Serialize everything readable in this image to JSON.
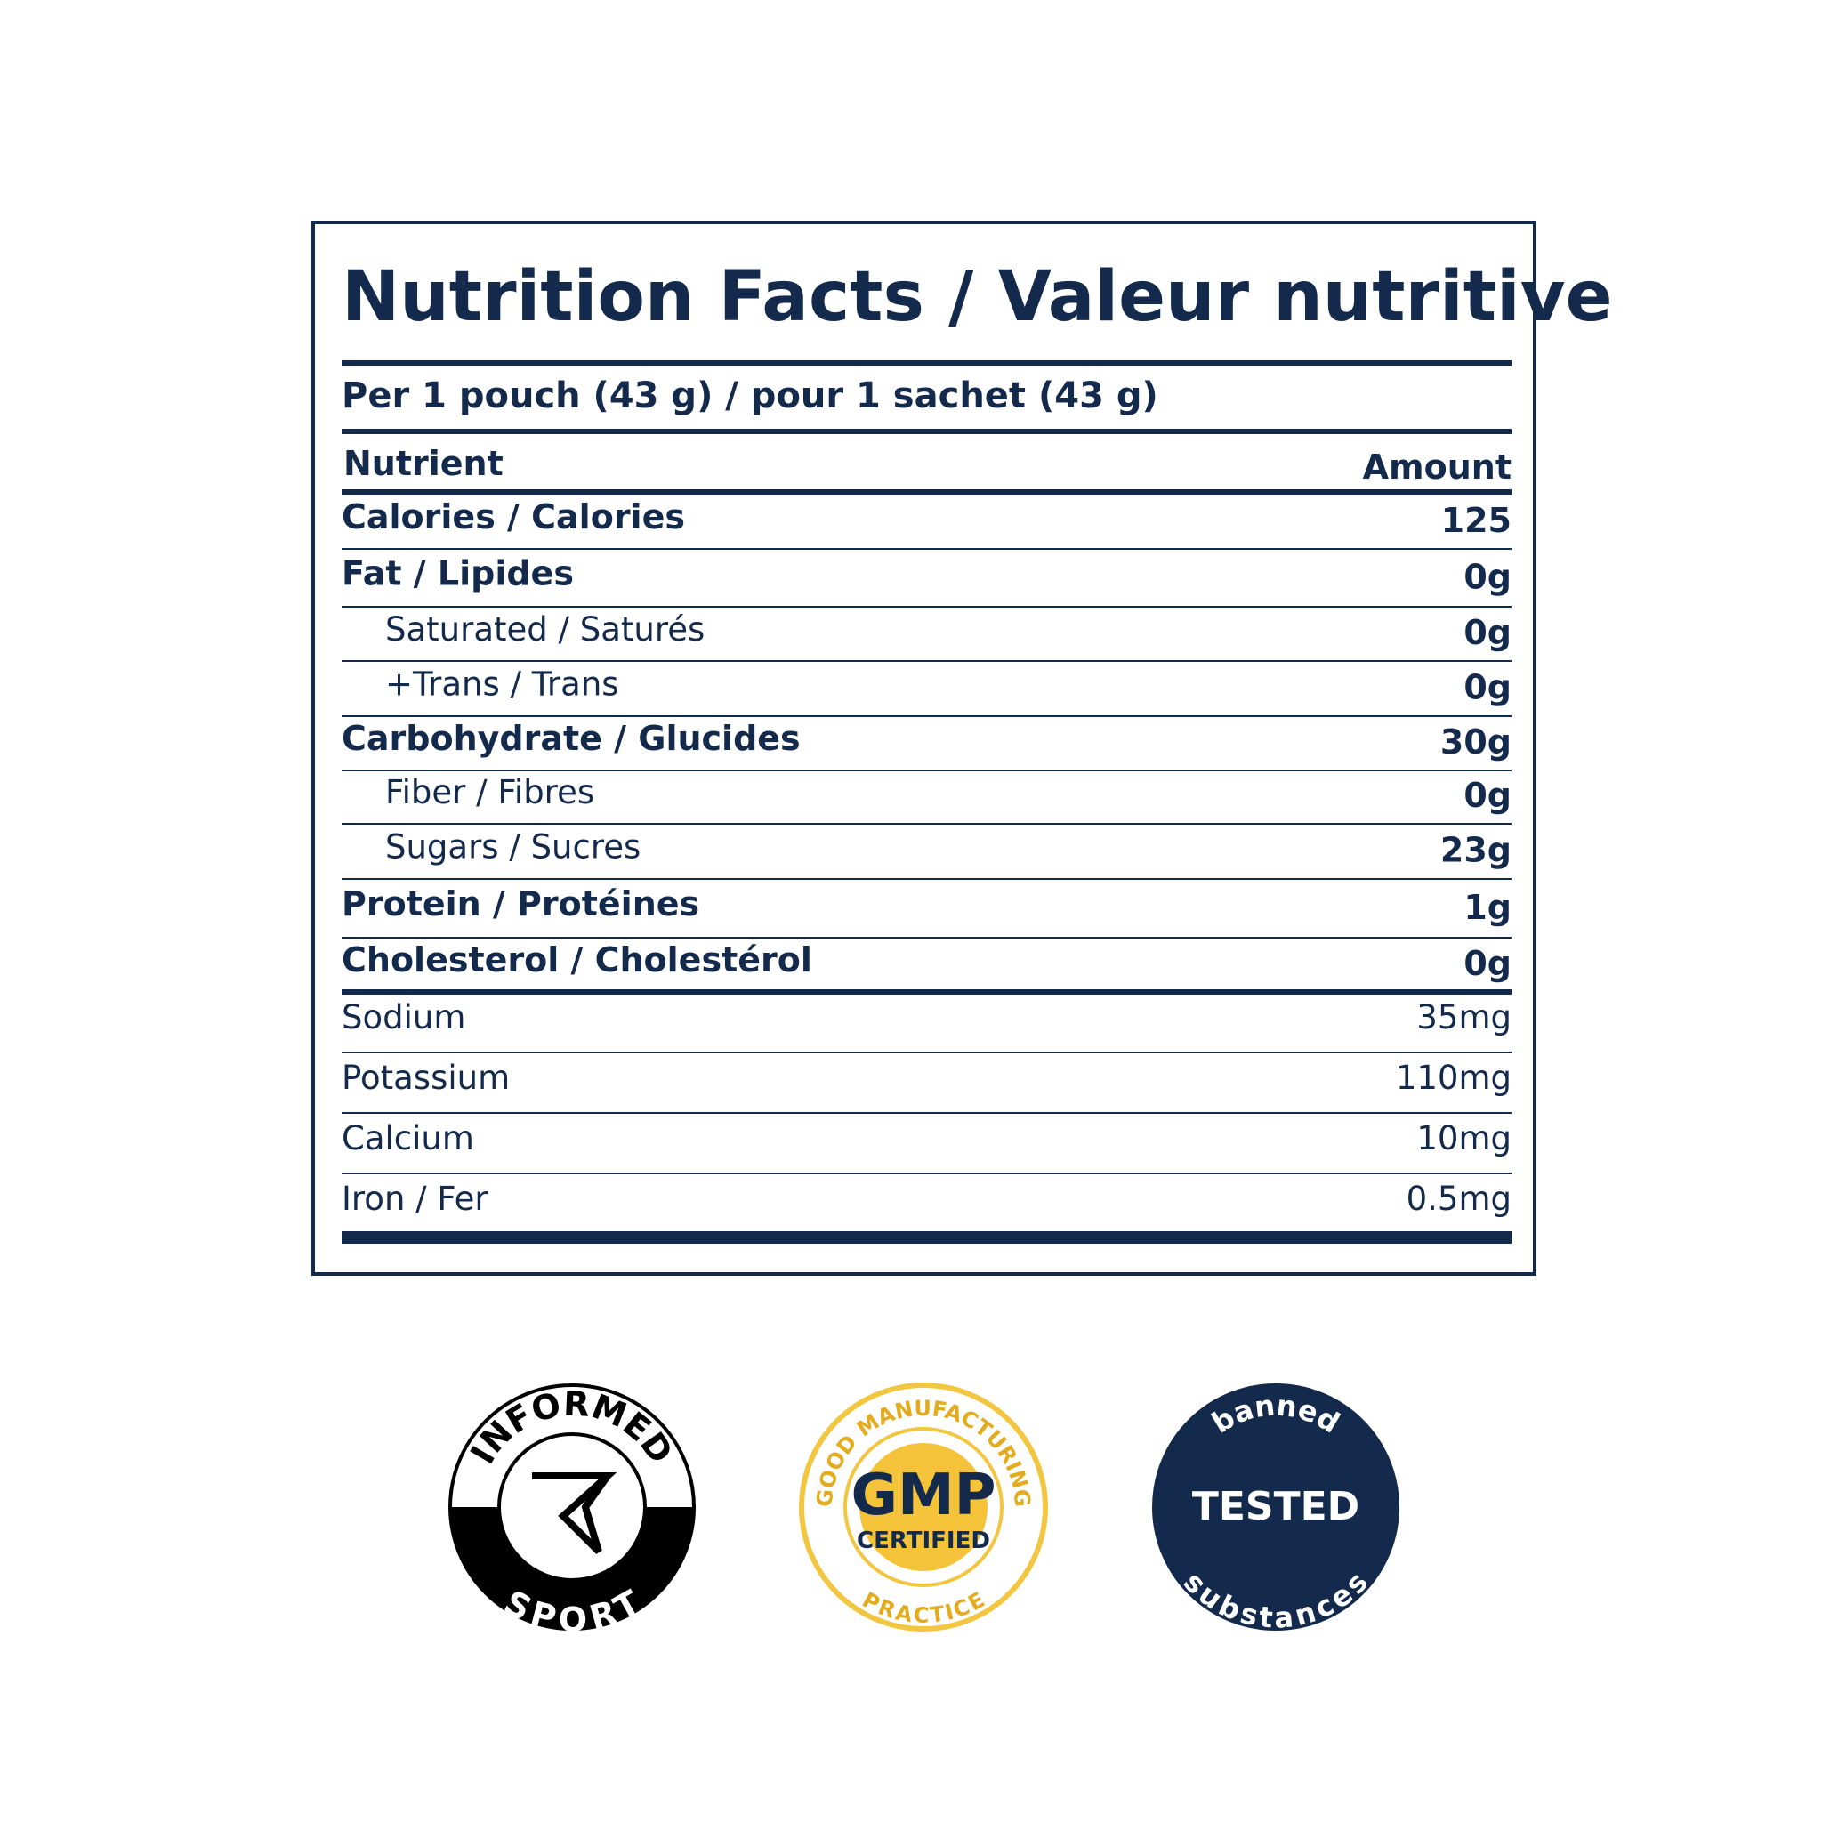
{
  "header": {
    "title": "Nutrition Facts / Valeur nutritive",
    "serving": "Per 1 pouch (43 g) / pour 1 sachet (43 g)"
  },
  "table": {
    "columns": [
      "Nutrient",
      "Amount"
    ],
    "rows": [
      {
        "name": "Calories / Calories",
        "amount": "125",
        "bold": true,
        "indent": false
      },
      {
        "name": "Fat / Lipides",
        "amount": "0g",
        "bold": true,
        "indent": false
      },
      {
        "name": "Saturated / Saturés",
        "amount": "0g",
        "bold": false,
        "indent": true
      },
      {
        "name": "+Trans / Trans",
        "amount": "0g",
        "bold": false,
        "indent": true
      },
      {
        "name": "Carbohydrate / Glucides",
        "amount": "30g",
        "bold": true,
        "indent": false
      },
      {
        "name": "Fiber / Fibres",
        "amount": "0g",
        "bold": false,
        "indent": true
      },
      {
        "name": "Sugars / Sucres",
        "amount": "23g",
        "bold": false,
        "indent": true
      },
      {
        "name": "Protein / Protéines",
        "amount": "1g",
        "bold": true,
        "indent": false
      },
      {
        "name": "Cholesterol / Cholestérol",
        "amount": "0g",
        "bold": true,
        "indent": false
      }
    ],
    "minerals": [
      {
        "name": "Sodium",
        "amount": "35mg"
      },
      {
        "name": "Potassium",
        "amount": "110mg"
      },
      {
        "name": "Calcium",
        "amount": "10mg"
      },
      {
        "name": "Iron / Fer",
        "amount": "0.5mg"
      }
    ]
  },
  "badges": [
    {
      "top": "INFORMED",
      "bottom": "SPORT"
    },
    {
      "top": "GOOD MANUFACTURING",
      "bottom": "PRACTICE",
      "center": "GMP",
      "sub": "CERTIFIED"
    },
    {
      "top": "banned",
      "bottom": "substances",
      "center": "TESTED"
    }
  ]
}
